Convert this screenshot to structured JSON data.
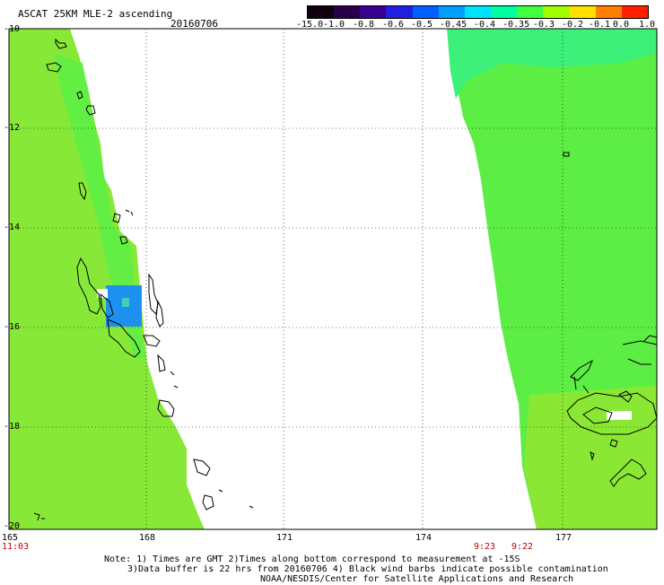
{
  "title": "ASCAT 25KM MLE-2 ascending",
  "date": "20160706",
  "colorbar": {
    "labels": [
      "-15.0",
      "-1.0",
      "-0.8",
      "-0.6",
      "-0.5",
      "-0.45",
      "-0.4",
      "-0.35",
      "-0.3",
      "-0.2",
      "-0.1",
      "0.0",
      "1.0"
    ],
    "colors": [
      "#100010",
      "#28004a",
      "#3a0090",
      "#2020e0",
      "#0060ff",
      "#00a0ff",
      "#00e0ff",
      "#00ffa0",
      "#40ff40",
      "#a0ff00",
      "#ffe000",
      "#ff8000",
      "#ff2000"
    ]
  },
  "axes": {
    "y_labels": [
      "-10",
      "-12",
      "-14",
      "-16",
      "-18",
      "-20"
    ],
    "x_labels": [
      "165",
      "168",
      "171",
      "174",
      "177"
    ]
  },
  "times": {
    "left": "11:03",
    "middle_a": "9:23",
    "middle_b": "9:22"
  },
  "notes": {
    "line1": "Note: 1) Times are GMT 2)Times along bottom correspond to measurement at -15S",
    "line2": "3)Data buffer is 22 hrs from 20160706 4) Black wind barbs indicate possible contamination",
    "line3": "NOAA/NESDIS/Center for Satellite Applications and Research"
  }
}
